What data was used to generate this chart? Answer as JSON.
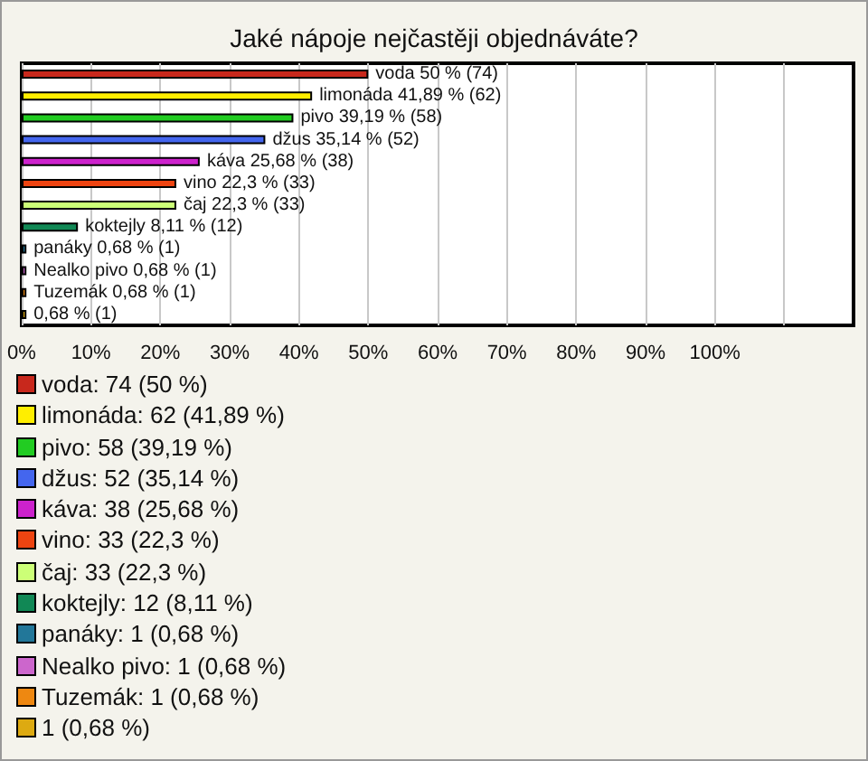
{
  "chart_data": {
    "type": "bar",
    "orientation": "horizontal",
    "title": "Jaké nápoje nejčastěji objednáváte?",
    "categories": [
      null,
      null,
      null,
      null,
      null,
      null,
      null,
      null,
      null,
      null,
      null,
      null
    ],
    "values": [
      50,
      41.89,
      39.19,
      35.14,
      25.68,
      22.3,
      22.3,
      8.11,
      0.68,
      0.68,
      0.68,
      0.68
    ],
    "colors": [
      "#c8281c",
      "#ffee00",
      "#22cc22",
      "#4466ee",
      "#cc22cc",
      "#ee4411",
      "#ccff77",
      "#118855",
      "#227799",
      "#cc66cc",
      "#ee8811",
      "#ddaa11"
    ],
    "value_labels": [
      "voda 50 % (74)",
      "limonáda 41,89 % (62)",
      "pivo 39,19 % (58)",
      "džus 35,14 % (52)",
      "káva 25,68 % (38)",
      "vino 22,3 % (33)",
      "čaj 22,3 % (33)",
      "koktejly 8,11 % (12)",
      "panáky 0,68 % (1)",
      "Nealko pivo 0,68 % (1)",
      "Tuzemák 0,68 % (1)",
      "0,68 % (1)"
    ],
    "xlim": [
      0,
      120
    ],
    "xticks": [
      {
        "value": 0,
        "label": "0%"
      },
      {
        "value": 10,
        "label": "10%"
      },
      {
        "value": 20,
        "label": "20%"
      },
      {
        "value": 30,
        "label": "30%"
      },
      {
        "value": 40,
        "label": "40%"
      },
      {
        "value": 50,
        "label": "50%"
      },
      {
        "value": 60,
        "label": "60%"
      },
      {
        "value": 70,
        "label": "70%"
      },
      {
        "value": 80,
        "label": "80%"
      },
      {
        "value": 90,
        "label": "90%"
      },
      {
        "value": 100,
        "label": "100%"
      },
      {
        "value": 110,
        "label": null
      }
    ],
    "grid": "x",
    "tick_labels": "x",
    "annotations": [
      "voda: 74 (50 %)",
      "limonáda: 62 (41,89 %)",
      "pivo: 58 (39,19 %)",
      "džus: 52 (35,14 %)",
      "káva: 38 (25,68 %)",
      "vino: 33 (22,3 %)",
      "čaj: 33 (22,3 %)",
      "koktejly: 12 (8,11 %)",
      "panáky: 1 (0,68 %)",
      "Nealko pivo: 1 (0,68 %)",
      "Tuzemák: 1 (0,68 %)",
      "1 (0,68 %)"
    ]
  }
}
